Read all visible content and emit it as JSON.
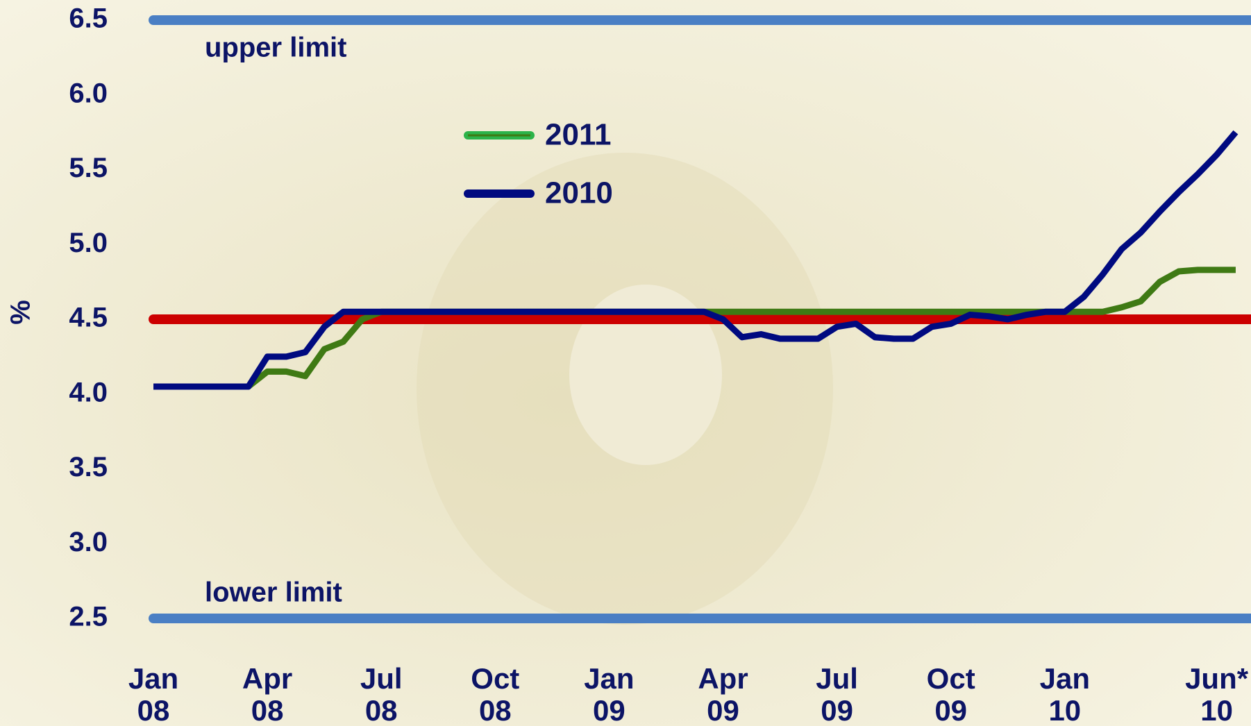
{
  "chart_data": {
    "type": "line",
    "y_label": "%",
    "categories": [
      "Jan 08",
      null,
      null,
      null,
      null,
      null,
      "Apr 08",
      null,
      null,
      null,
      null,
      null,
      "Jul 08",
      null,
      null,
      null,
      null,
      null,
      "Oct 08",
      null,
      null,
      null,
      null,
      null,
      "Jan 09",
      null,
      null,
      null,
      null,
      null,
      "Apr 09",
      null,
      null,
      null,
      null,
      null,
      "Jul 09",
      null,
      null,
      null,
      null,
      null,
      "Oct 09",
      null,
      null,
      null,
      null,
      null,
      "Jan 10",
      null,
      null,
      null,
      null,
      null,
      null,
      null,
      "Jun* 10",
      null
    ],
    "series": [
      {
        "name": "2011",
        "color": "#3f7a14",
        "legend_color": "#2db34a",
        "values": [
          4.05,
          4.05,
          4.05,
          4.05,
          4.05,
          4.05,
          4.15,
          4.15,
          4.12,
          4.3,
          4.35,
          4.5,
          4.55,
          4.55,
          4.55,
          4.55,
          4.55,
          4.55,
          4.55,
          4.55,
          4.55,
          4.55,
          4.55,
          4.55,
          4.55,
          4.55,
          4.55,
          4.55,
          4.55,
          4.55,
          4.55,
          4.55,
          4.55,
          4.55,
          4.55,
          4.55,
          4.55,
          4.55,
          4.55,
          4.55,
          4.55,
          4.55,
          4.55,
          4.55,
          4.55,
          4.55,
          4.55,
          4.55,
          4.55,
          4.55,
          4.55,
          4.58,
          4.62,
          4.75,
          4.82,
          4.83,
          4.83,
          4.83
        ]
      },
      {
        "name": "2010",
        "color": "#000a80",
        "legend_color": "#000a80",
        "values": [
          4.05,
          4.05,
          4.05,
          4.05,
          4.05,
          4.05,
          4.25,
          4.25,
          4.28,
          4.45,
          4.55,
          4.55,
          4.55,
          4.55,
          4.55,
          4.55,
          4.55,
          4.55,
          4.55,
          4.55,
          4.55,
          4.55,
          4.55,
          4.55,
          4.55,
          4.55,
          4.55,
          4.55,
          4.55,
          4.55,
          4.5,
          4.38,
          4.4,
          4.37,
          4.37,
          4.37,
          4.45,
          4.47,
          4.38,
          4.37,
          4.37,
          4.45,
          4.47,
          4.53,
          4.52,
          4.5,
          4.53,
          4.55,
          4.55,
          4.65,
          4.8,
          4.97,
          5.08,
          5.22,
          5.35,
          5.47,
          5.6,
          5.75
        ]
      }
    ],
    "reference_lines": [
      {
        "value": 6.5,
        "label": "upper limit",
        "color": "#4a7fc4"
      },
      {
        "value": 2.5,
        "label": "lower limit",
        "color": "#4a7fc4"
      },
      {
        "value": 4.5,
        "color": "#cc0000"
      }
    ],
    "ylim": [
      2.5,
      6.5
    ],
    "yticks": [
      2.5,
      {
        "value": 3,
        "label": "3.0"
      },
      3.5,
      {
        "value": 4,
        "label": "4.0"
      },
      4.5,
      {
        "value": 5,
        "label": "5.0"
      },
      5.5,
      {
        "value": 6,
        "label": "6.0"
      },
      6.5
    ]
  }
}
